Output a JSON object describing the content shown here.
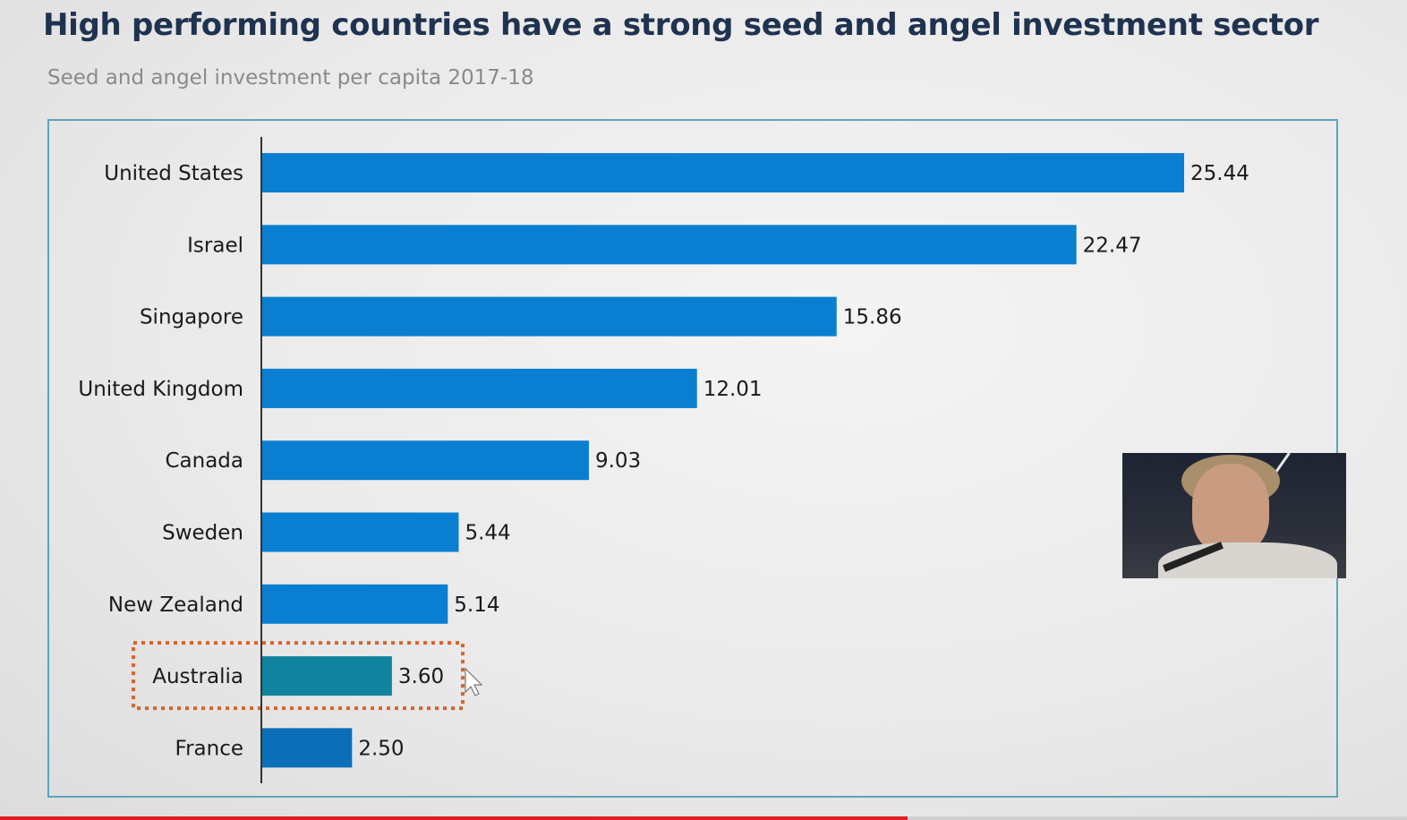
{
  "slide": {
    "title": "High performing countries have a strong seed and angel investment sector",
    "subtitle": "Seed and angel investment per capita 2017-18"
  },
  "colors": {
    "bar": "#0a7fd1",
    "bar_highlight": "#11839e",
    "bar_last": "#0b6fb8",
    "highlight_box": "#d9632a",
    "frame": "#5ba6b8"
  },
  "chart_data": {
    "type": "bar",
    "orientation": "horizontal",
    "categories": [
      "United States",
      "Israel",
      "Singapore",
      "United Kingdom",
      "Canada",
      "Sweden",
      "New Zealand",
      "Australia",
      "France"
    ],
    "values": [
      25.44,
      22.47,
      15.86,
      12.01,
      9.03,
      5.44,
      5.14,
      3.6,
      2.5
    ],
    "value_labels": [
      "25.44",
      "22.47",
      "15.86",
      "12.01",
      "9.03",
      "5.44",
      "5.14",
      "3.60",
      "2.50"
    ],
    "highlighted_category": "Australia",
    "xlim": [
      0,
      30
    ],
    "grid": false,
    "legend": "none"
  },
  "video": {
    "progress": 0.645,
    "webcam_overlay": "presenter-webcam"
  }
}
